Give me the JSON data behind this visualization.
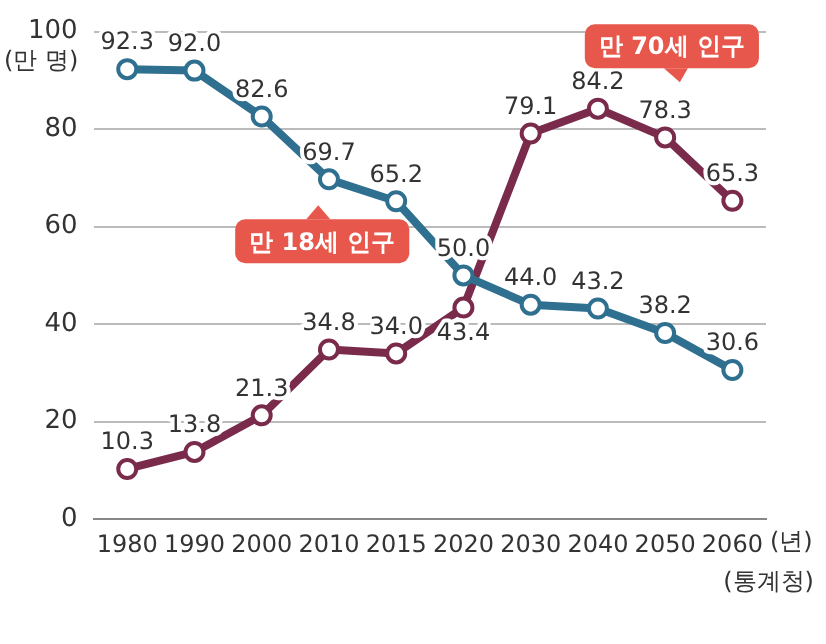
{
  "chart_data": {
    "type": "line",
    "ylabel": "(만 명)",
    "xlabel": "(년)",
    "annotations": [
      "(통계청)"
    ],
    "categories": [
      "1980",
      "1990",
      "2000",
      "2010",
      "2015",
      "2020",
      "2030",
      "2040",
      "2050",
      "2060"
    ],
    "series": [
      {
        "name": "만 18세 인구",
        "color": "#2f6f8f",
        "values": [
          92.3,
          92.0,
          82.6,
          69.7,
          65.2,
          50.0,
          44.0,
          43.2,
          38.2,
          30.6
        ],
        "value_labels": [
          "92.3",
          "92.0",
          "82.6",
          "69.7",
          "65.2",
          "50.0",
          "44.0",
          "43.2",
          "38.2",
          "30.6"
        ]
      },
      {
        "name": "만 70세 인구",
        "color": "#7a2b4b",
        "values": [
          10.3,
          13.8,
          21.3,
          34.8,
          34.0,
          43.4,
          79.1,
          84.2,
          78.3,
          65.3
        ],
        "value_labels": [
          "10.3",
          "13.8",
          "21.3",
          "34.8",
          "34.0",
          "43.4",
          "79.1",
          "84.2",
          "78.3",
          "65.3"
        ]
      }
    ],
    "ylim": [
      0,
      100
    ],
    "yticks": [
      0,
      20,
      40,
      60,
      80,
      100
    ],
    "grid": "y",
    "legend": false,
    "marker": "circle",
    "line_style": "solid"
  }
}
